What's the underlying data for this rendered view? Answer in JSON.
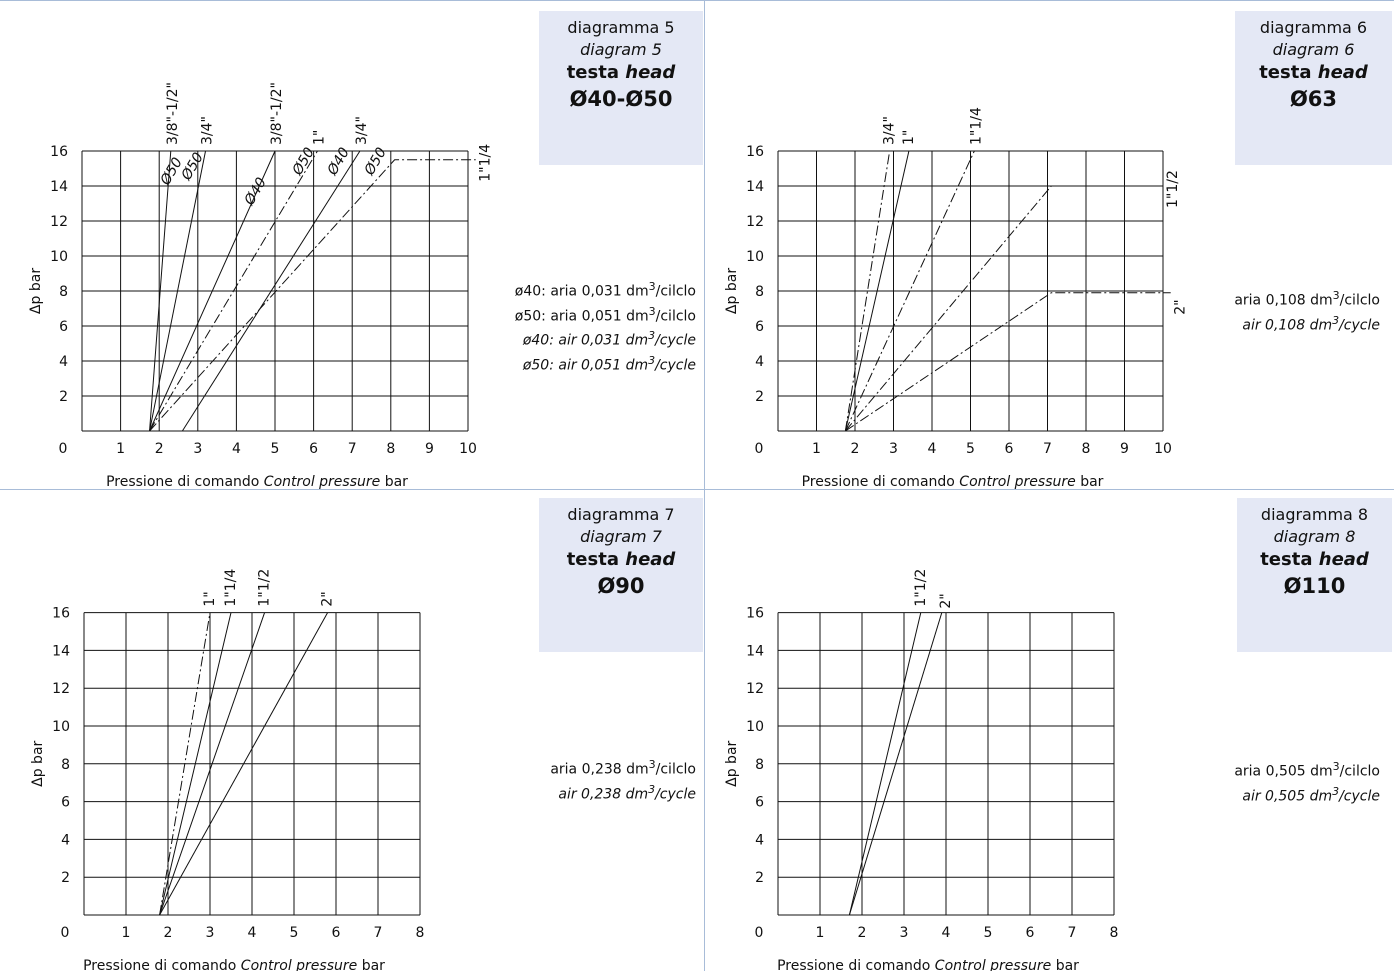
{
  "panels": [
    {
      "header": {
        "line1": "diagramma 5",
        "line2": "diagram 5",
        "line3a": "testa",
        "line3b": "head",
        "line4": "Ø40-Ø50"
      },
      "notes": [
        {
          "pre": "ø40: aria 0,031 dm",
          "sup": "3",
          "post": "/cilclo",
          "italic": false
        },
        {
          "pre": "ø50: aria 0,051 dm",
          "sup": "3",
          "post": "/cilclo",
          "italic": false
        },
        {
          "pre": "ø40: air 0,031 dm",
          "sup": "3",
          "post": "/cycle",
          "italic": true
        },
        {
          "pre": "ø50: air 0,051 dm",
          "sup": "3",
          "post": "/cycle",
          "italic": true
        }
      ]
    },
    {
      "header": {
        "line1": "diagramma 6",
        "line2": "diagram 6",
        "line3a": "testa",
        "line3b": "head",
        "line4": "Ø63"
      },
      "notes": [
        {
          "pre": "aria 0,108 dm",
          "sup": "3",
          "post": "/cilclo",
          "italic": false
        },
        {
          "pre": "air 0,108 dm",
          "sup": "3",
          "post": "/cycle",
          "italic": true
        }
      ]
    },
    {
      "header": {
        "line1": "diagramma 7",
        "line2": "diagram 7",
        "line3a": "testa",
        "line3b": "head",
        "line4": "Ø90"
      },
      "notes": [
        {
          "pre": "aria 0,238 dm",
          "sup": "3",
          "post": "/cilclo",
          "italic": false
        },
        {
          "pre": "air 0,238 dm",
          "sup": "3",
          "post": "/cycle",
          "italic": true
        }
      ]
    },
    {
      "header": {
        "line1": "diagramma 8",
        "line2": "diagram 8",
        "line3a": "testa",
        "line3b": "head",
        "line4": "Ø110"
      },
      "notes": [
        {
          "pre": "aria 0,505 dm",
          "sup": "3",
          "post": "/cilclo",
          "italic": false
        },
        {
          "pre": "air 0,505 dm",
          "sup": "3",
          "post": "/cycle",
          "italic": true
        }
      ]
    }
  ],
  "chart_data": [
    {
      "type": "line",
      "xlabel_plain": "Pressione di comando",
      "xlabel_italic": "Control pressure",
      "xlabel_unit": "bar",
      "ylabel": "Δp bar",
      "xlim": [
        0,
        10
      ],
      "ylim": [
        0,
        16
      ],
      "xticks": [
        0,
        1,
        2,
        3,
        4,
        5,
        6,
        7,
        8,
        9,
        10
      ],
      "yticks": [
        2,
        4,
        6,
        8,
        10,
        12,
        14,
        16
      ],
      "series": [
        {
          "name": "3/8\"-1/2\"",
          "style": "solid",
          "points": [
            [
              1.75,
              0
            ],
            [
              2.3,
              16
            ]
          ]
        },
        {
          "name": "3/4\"",
          "style": "solid",
          "points": [
            [
              1.75,
              0
            ],
            [
              3.2,
              16
            ]
          ]
        },
        {
          "name": "3/8\"-1/2\"",
          "style": "solid",
          "points": [
            [
              1.75,
              0
            ],
            [
              5.0,
              16
            ]
          ]
        },
        {
          "name": "1\"",
          "style": "dashdot",
          "points": [
            [
              1.75,
              0
            ],
            [
              6.1,
              16
            ]
          ]
        },
        {
          "name": "3/4\"",
          "style": "solid",
          "points": [
            [
              2.6,
              0
            ],
            [
              7.2,
              16
            ]
          ]
        },
        {
          "name": "1\"1/4",
          "style": "dashdot",
          "points": [
            [
              1.75,
              0
            ],
            [
              8.1,
              15.5
            ],
            [
              10.2,
              15.5
            ]
          ]
        }
      ],
      "annotations": [
        "Ø50",
        "Ø50",
        "Ø40",
        "Ø50",
        "Ø40",
        "Ø50"
      ]
    },
    {
      "type": "line",
      "xlabel_plain": "Pressione di comando",
      "xlabel_italic": "Control pressure",
      "xlabel_unit": "bar",
      "ylabel": "Δp bar",
      "xlim": [
        0,
        10
      ],
      "ylim": [
        0,
        16
      ],
      "xticks": [
        0,
        1,
        2,
        3,
        4,
        5,
        6,
        7,
        8,
        9,
        10
      ],
      "yticks": [
        2,
        4,
        6,
        8,
        10,
        12,
        14,
        16
      ],
      "series": [
        {
          "name": "3/4\"",
          "style": "dashdot",
          "points": [
            [
              1.75,
              0
            ],
            [
              2.9,
              16
            ]
          ]
        },
        {
          "name": "1\"",
          "style": "solid",
          "points": [
            [
              1.75,
              0
            ],
            [
              3.4,
              16
            ]
          ]
        },
        {
          "name": "1\"1/4",
          "style": "dashdot",
          "points": [
            [
              1.75,
              0
            ],
            [
              5.1,
              16
            ]
          ]
        },
        {
          "name": "1\"1/2",
          "style": "dashdot",
          "points": [
            [
              1.75,
              0
            ],
            [
              7.1,
              14
            ],
            [
              10,
              14
            ]
          ]
        },
        {
          "name": "2\"",
          "style": "dashdot",
          "points": [
            [
              1.75,
              0
            ],
            [
              7.1,
              7.9
            ],
            [
              10.2,
              7.9
            ]
          ]
        }
      ]
    },
    {
      "type": "line",
      "xlabel_plain": "Pressione di comando",
      "xlabel_italic": "Control pressure",
      "xlabel_unit": "bar",
      "ylabel": "Δp bar",
      "xlim": [
        0,
        8
      ],
      "ylim": [
        0,
        16
      ],
      "xticks": [
        0,
        1,
        2,
        3,
        4,
        5,
        6,
        7,
        8
      ],
      "yticks": [
        2,
        4,
        6,
        8,
        10,
        12,
        14,
        16
      ],
      "series": [
        {
          "name": "1\"",
          "style": "dashdot",
          "points": [
            [
              1.8,
              0
            ],
            [
              3.0,
              16
            ]
          ]
        },
        {
          "name": "1\"1/4",
          "style": "solid",
          "points": [
            [
              1.8,
              0
            ],
            [
              3.5,
              16
            ]
          ]
        },
        {
          "name": "1\"1/2",
          "style": "solid",
          "points": [
            [
              1.8,
              0
            ],
            [
              4.3,
              16
            ]
          ]
        },
        {
          "name": "2\"",
          "style": "solid",
          "points": [
            [
              1.8,
              0
            ],
            [
              5.8,
              16
            ]
          ]
        }
      ]
    },
    {
      "type": "line",
      "xlabel_plain": "Pressione di comando",
      "xlabel_italic": "Control pressure",
      "xlabel_unit": "bar",
      "ylabel": "Δp bar",
      "xlim": [
        0,
        8
      ],
      "ylim": [
        0,
        16
      ],
      "xticks": [
        0,
        1,
        2,
        3,
        4,
        5,
        6,
        7,
        8
      ],
      "yticks": [
        2,
        4,
        6,
        8,
        10,
        12,
        14,
        16
      ],
      "series": [
        {
          "name": "1\"1/2",
          "style": "solid",
          "points": [
            [
              1.7,
              0
            ],
            [
              3.4,
              16
            ]
          ]
        },
        {
          "name": "2\"",
          "style": "solid",
          "points": [
            [
              1.7,
              0
            ],
            [
              3.9,
              16
            ]
          ]
        }
      ]
    }
  ]
}
